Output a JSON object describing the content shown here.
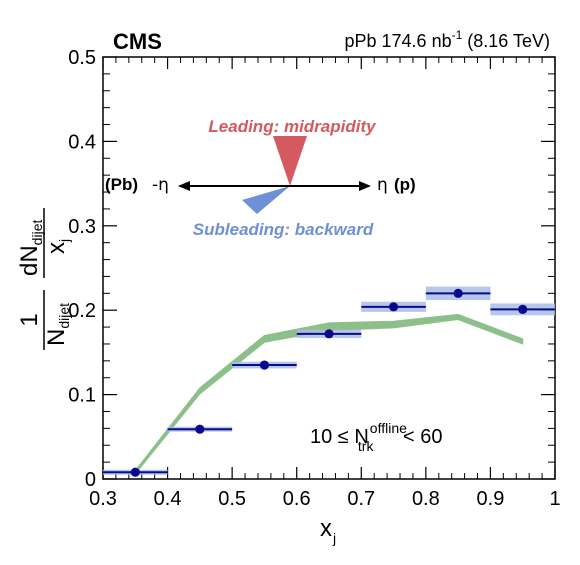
{
  "header": {
    "experiment": "CMS",
    "lumi_prefix": "pPb 174.6 nb",
    "lumi_exp": "-1",
    "lumi_suffix": " (8.16 TeV)"
  },
  "annotations": {
    "leading": "Leading: midrapidity",
    "subleading": "Subleading: backward",
    "pb_side": "(Pb)",
    "pb_eta": "-η",
    "p_eta": "η",
    "p_side": "(p)",
    "selection_prefix": "10 ≤ N",
    "selection_sup": "offline",
    "selection_sub": "trk",
    "selection_suffix": " < 60"
  },
  "axes": {
    "xlabel_main": "x",
    "xlabel_sub": "j",
    "ylabel_one": "1",
    "ylabel_N": "N",
    "ylabel_N_sub": "dijet",
    "ylabel_dN": "dN",
    "ylabel_dN_sub": "dijet",
    "ylabel_dx": "x",
    "ylabel_dx_sub": "j"
  },
  "colors": {
    "data": "#0a0a8f",
    "syst_box": "#a9bde3",
    "model_band": "#8dbf8a",
    "leading_cone": "#d45a5f",
    "subleading_cone": "#6f8fd6"
  },
  "chart_data": {
    "type": "scatter",
    "xlim": [
      0.3,
      1.0
    ],
    "ylim": [
      0,
      0.5
    ],
    "x_ticks": [
      "0.3",
      "0.4",
      "0.5",
      "0.6",
      "0.7",
      "0.8",
      "0.9",
      "1"
    ],
    "x_tick_values": [
      0.3,
      0.4,
      0.5,
      0.6,
      0.7,
      0.8,
      0.9,
      1.0
    ],
    "y_ticks": [
      "0",
      "0.1",
      "0.2",
      "0.3",
      "0.4",
      "0.5"
    ],
    "y_tick_values": [
      0,
      0.1,
      0.2,
      0.3,
      0.4,
      0.5
    ],
    "points": [
      {
        "x": 0.35,
        "y": 0.008,
        "xlo": 0.3,
        "xhi": 0.4,
        "syst": 0.003
      },
      {
        "x": 0.45,
        "y": 0.059,
        "xlo": 0.4,
        "xhi": 0.5,
        "syst": 0.003
      },
      {
        "x": 0.55,
        "y": 0.135,
        "xlo": 0.5,
        "xhi": 0.6,
        "syst": 0.004
      },
      {
        "x": 0.65,
        "y": 0.172,
        "xlo": 0.6,
        "xhi": 0.7,
        "syst": 0.005
      },
      {
        "x": 0.75,
        "y": 0.204,
        "xlo": 0.7,
        "xhi": 0.8,
        "syst": 0.006
      },
      {
        "x": 0.85,
        "y": 0.22,
        "xlo": 0.8,
        "xhi": 0.9,
        "syst": 0.008
      },
      {
        "x": 0.95,
        "y": 0.201,
        "xlo": 0.9,
        "xhi": 1.0,
        "syst": 0.007
      }
    ],
    "band": [
      {
        "x": 0.35,
        "lo": 0.006,
        "hi": 0.01
      },
      {
        "x": 0.45,
        "lo": 0.101,
        "hi": 0.108
      },
      {
        "x": 0.55,
        "lo": 0.162,
        "hi": 0.17
      },
      {
        "x": 0.65,
        "lo": 0.176,
        "hi": 0.185
      },
      {
        "x": 0.75,
        "lo": 0.179,
        "hi": 0.187
      },
      {
        "x": 0.85,
        "lo": 0.189,
        "hi": 0.195
      },
      {
        "x": 0.95,
        "lo": 0.16,
        "hi": 0.166
      }
    ]
  }
}
